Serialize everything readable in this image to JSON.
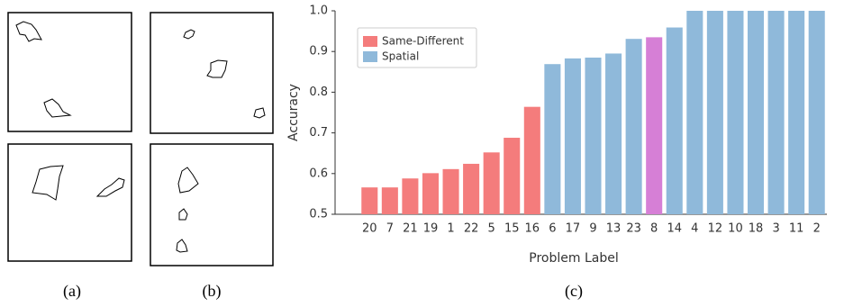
{
  "chart_data": {
    "type": "bar",
    "categories": [
      "20",
      "7",
      "21",
      "19",
      "1",
      "22",
      "5",
      "15",
      "16",
      "6",
      "17",
      "9",
      "13",
      "23",
      "8",
      "14",
      "4",
      "12",
      "10",
      "18",
      "3",
      "11",
      "2"
    ],
    "values": [
      0.566,
      0.566,
      0.588,
      0.601,
      0.611,
      0.624,
      0.652,
      0.688,
      0.764,
      0.869,
      0.883,
      0.885,
      0.895,
      0.931,
      0.935,
      0.959,
      1.0,
      1.0,
      1.0,
      1.0,
      1.0,
      1.0,
      1.0
    ],
    "colors": [
      "#f47c7c",
      "#f47c7c",
      "#f47c7c",
      "#f47c7c",
      "#f47c7c",
      "#f47c7c",
      "#f47c7c",
      "#f47c7c",
      "#f47c7c",
      "#8fb9da",
      "#8fb9da",
      "#8fb9da",
      "#8fb9da",
      "#8fb9da",
      "#d67fd6",
      "#8fb9da",
      "#8fb9da",
      "#8fb9da",
      "#8fb9da",
      "#8fb9da",
      "#8fb9da",
      "#8fb9da",
      "#8fb9da"
    ],
    "legend": [
      {
        "name": "Same-Different",
        "color": "#f47c7c"
      },
      {
        "name": "Spatial",
        "color": "#8fb9da"
      }
    ],
    "legend_position": "upper left",
    "x_label": "Problem Label",
    "y_label": "Accuracy",
    "ylim": [
      0.5,
      1.0
    ],
    "yticks": [
      0.5,
      0.6,
      0.7,
      0.8,
      0.9,
      {
        "value": 1.0,
        "label": "1.0"
      }
    ]
  },
  "captions": [
    "(a)",
    "(b)",
    "(c)"
  ]
}
